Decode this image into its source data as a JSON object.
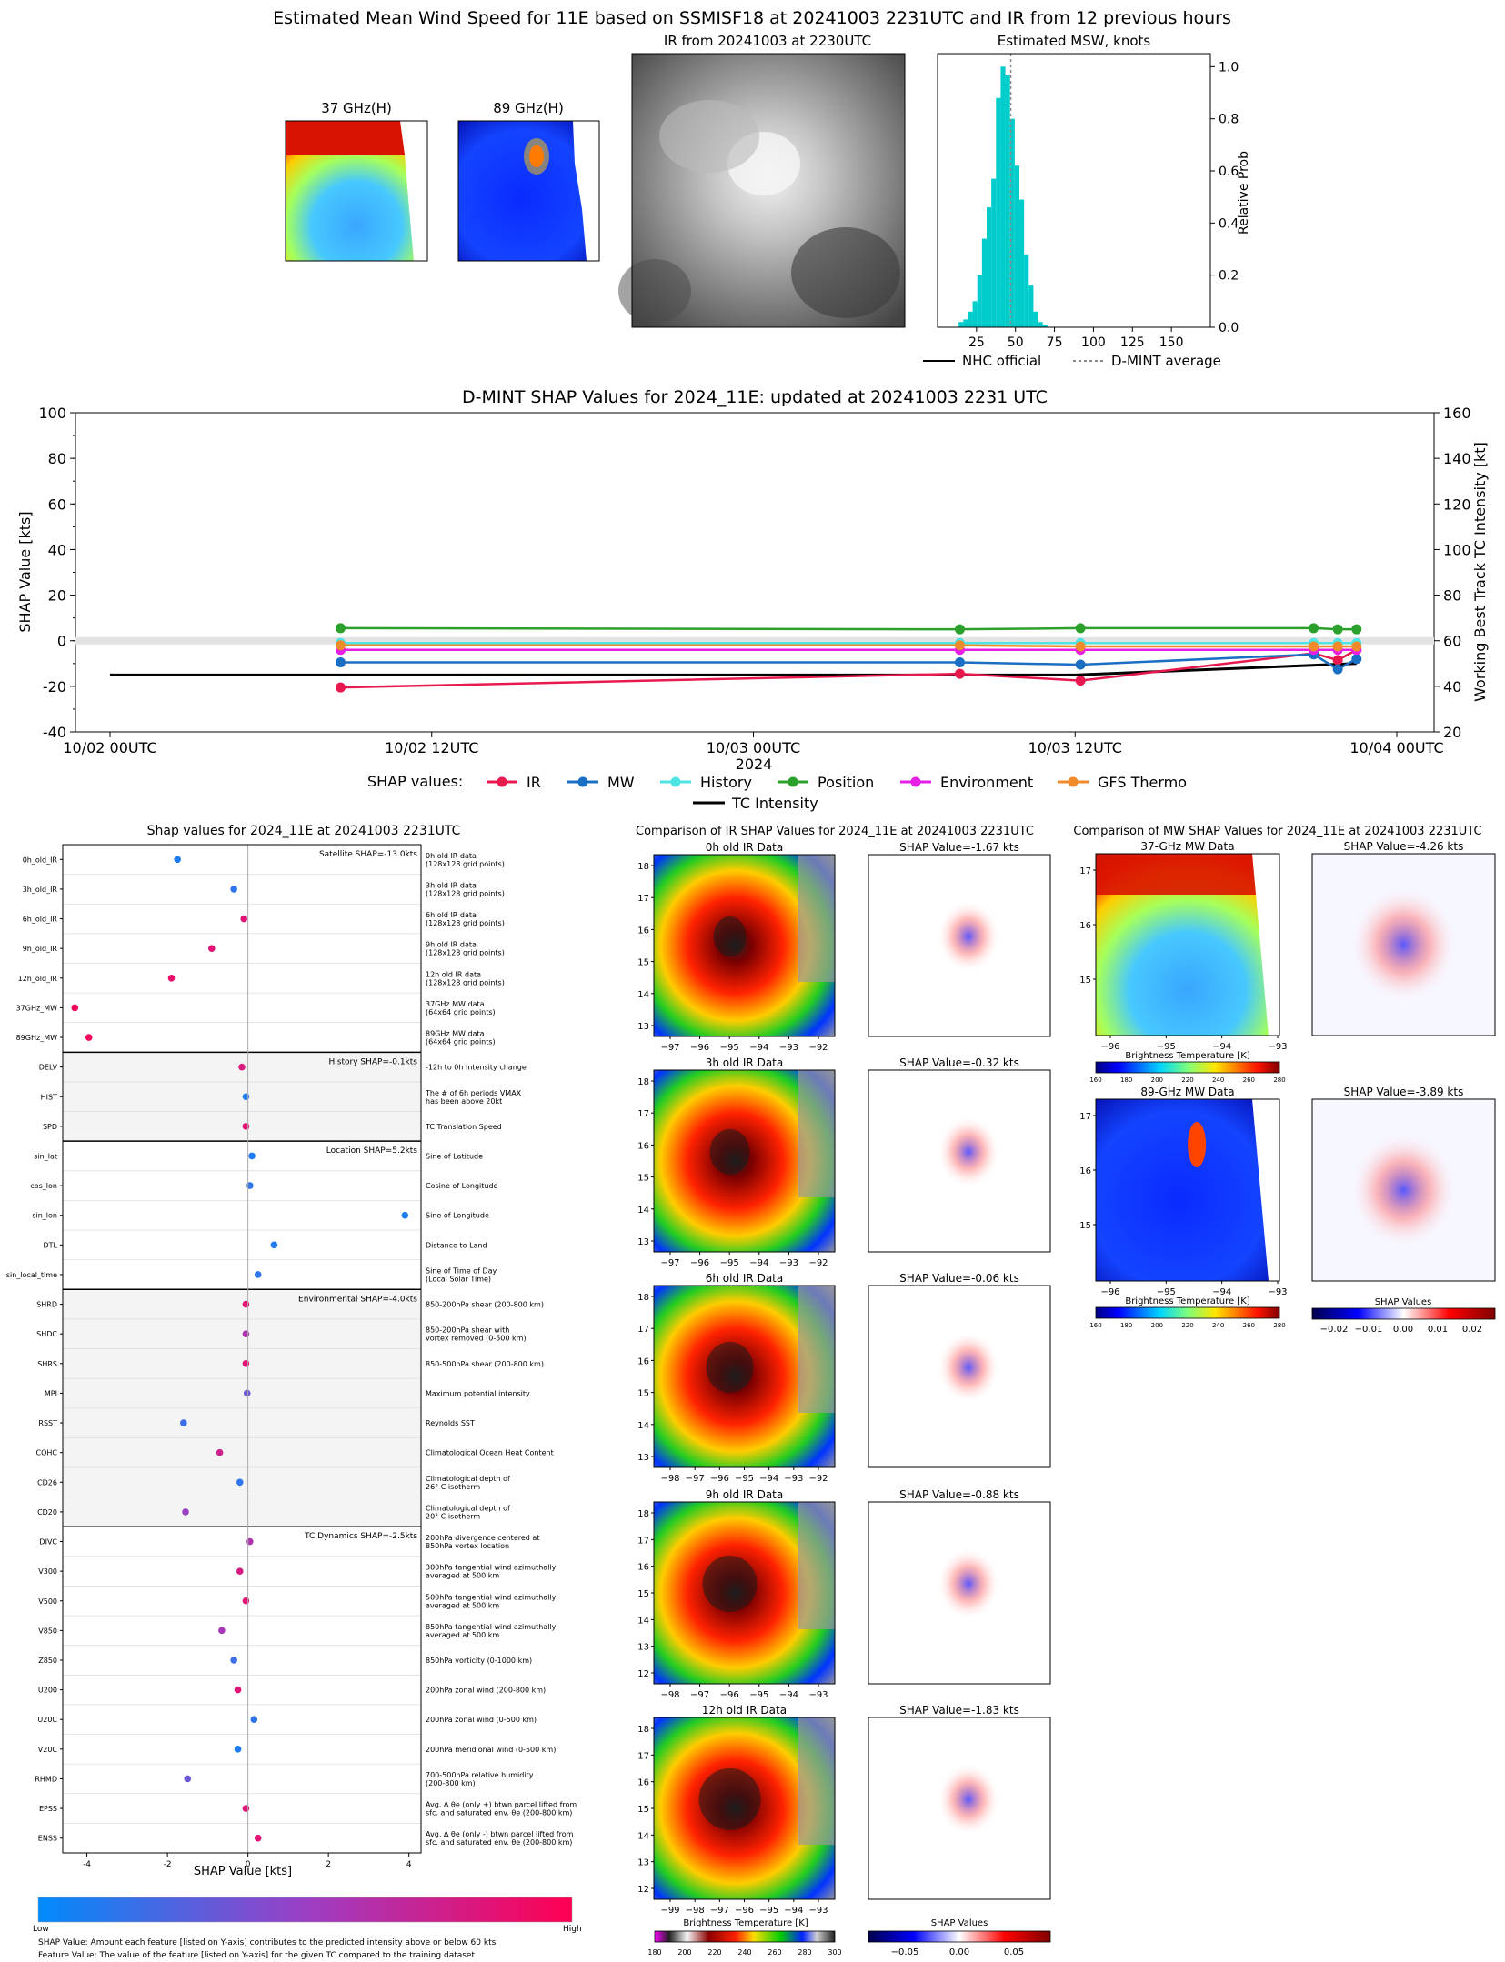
{
  "top": {
    "title": "Estimated Mean Wind Speed for 11E based on SSMISF18 at 20241003 2231UTC and IR from 12 previous hours",
    "mw37_title": "37 GHz(H)",
    "mw89_title": "89 GHz(H)",
    "ir_title": "IR from 20241003 at 2230UTC",
    "hist_title": "Estimated MSW, knots",
    "hist_ylabel": "Relative Prob",
    "legend": {
      "nhc": "NHC official",
      "dmint": "D-MINT average"
    }
  },
  "shap_ts": {
    "title": "D-MINT SHAP Values for 2024_11E: updated at 20241003 2231 UTC",
    "ylabel_left": "SHAP Value [kts]",
    "ylabel_right": "Working Best Track TC Intensity [kt]",
    "xlabel": "2024",
    "legend_title": "SHAP values:",
    "tc_label": "TC Intensity"
  },
  "bottom_left": {
    "title": "Shap values for 2024_11E at 20241003 2231UTC",
    "xlabel": "SHAP Value [kts]",
    "colorbar_low": "Low",
    "colorbar_high": "High",
    "note1": "SHAP Value: Amount each feature [listed on Y-axis] contributes to the predicted intensity above or below 60 kts",
    "note2": "Feature Value: The value of the feature [listed on Y-axis] for the given TC compared to the training dataset"
  },
  "ir_compare": {
    "title": "Comparison of IR SHAP Values for 2024_11E at 20241003 2231UTC",
    "panels": [
      {
        "ir": "0h old IR Data",
        "shap": "SHAP Value=-1.67 kts"
      },
      {
        "ir": "3h old IR Data",
        "shap": "SHAP Value=-0.32 kts"
      },
      {
        "ir": "6h old IR Data",
        "shap": "SHAP Value=-0.06 kts"
      },
      {
        "ir": "9h old IR Data",
        "shap": "SHAP Value=-0.88 kts"
      },
      {
        "ir": "12h old IR Data",
        "shap": "SHAP Value=-1.83 kts"
      }
    ],
    "cbar_label": "Brightness Temperature [K]",
    "shap_cbar_label": "SHAP Values"
  },
  "mw_compare": {
    "title": "Comparison of MW SHAP Values for 2024_11E at 20241003 2231UTC",
    "panels": [
      {
        "mw": "37-GHz MW Data",
        "shap": "SHAP Value=-4.26 kts"
      },
      {
        "mw": "89-GHz MW Data",
        "shap": "SHAP Value=-3.89 kts"
      }
    ],
    "cbar_label": "Brightness Temperature [K]",
    "shap_cbar_label": "SHAP Values"
  },
  "chart_data": [
    {
      "type": "bar",
      "name": "Estimated MSW histogram",
      "xlim": [
        0,
        175
      ],
      "ylim": [
        0,
        1.05
      ],
      "xticks": [
        25,
        50,
        75,
        100,
        125,
        150
      ],
      "yticks": [
        0.0,
        0.2,
        0.4,
        0.6,
        0.8,
        1.0
      ],
      "bin_width": 3,
      "bins": [
        {
          "x": 15,
          "y": 0.02
        },
        {
          "x": 18,
          "y": 0.03
        },
        {
          "x": 21,
          "y": 0.06
        },
        {
          "x": 24,
          "y": 0.1
        },
        {
          "x": 27,
          "y": 0.2
        },
        {
          "x": 30,
          "y": 0.34
        },
        {
          "x": 33,
          "y": 0.46
        },
        {
          "x": 36,
          "y": 0.57
        },
        {
          "x": 39,
          "y": 0.88
        },
        {
          "x": 42,
          "y": 1.0
        },
        {
          "x": 45,
          "y": 0.97
        },
        {
          "x": 48,
          "y": 0.8
        },
        {
          "x": 51,
          "y": 0.62
        },
        {
          "x": 54,
          "y": 0.49
        },
        {
          "x": 57,
          "y": 0.28
        },
        {
          "x": 60,
          "y": 0.16
        },
        {
          "x": 63,
          "y": 0.06
        },
        {
          "x": 66,
          "y": 0.02
        },
        {
          "x": 69,
          "y": 0.01
        }
      ],
      "dmint_average": 47
    },
    {
      "type": "line",
      "name": "D-MINT SHAP time series",
      "ylim": [
        -40,
        100
      ],
      "ylim_right": [
        20,
        160
      ],
      "yticks": [
        -40,
        -20,
        0,
        20,
        40,
        60,
        80,
        100
      ],
      "yticks_right": [
        20,
        40,
        60,
        80,
        100,
        120,
        140,
        160
      ],
      "xticks": [
        "10/02 00UTC",
        "10/02 12UTC",
        "10/03 00UTC",
        "10/03 12UTC",
        "10/04 00UTC"
      ],
      "xlim_hours": [
        0,
        48
      ],
      "series": [
        {
          "name": "IR",
          "color": "#e8194f",
          "x": [
            8.6,
            31.7,
            36.2,
            44.9,
            45.8,
            46.5
          ],
          "y": [
            -20.5,
            -14.5,
            -17.5,
            -5.5,
            -8.5,
            -4.0
          ]
        },
        {
          "name": "MW",
          "color": "#1a6fc4",
          "x": [
            8.6,
            31.7,
            36.2,
            44.9,
            45.8,
            46.5
          ],
          "y": [
            -9.5,
            -9.5,
            -10.5,
            -6.0,
            -12.5,
            -8.0
          ]
        },
        {
          "name": "History",
          "color": "#4fe3e3",
          "x": [
            8.6,
            31.7,
            36.2,
            44.9,
            45.8,
            46.5
          ],
          "y": [
            -1.0,
            -1.0,
            -1.0,
            -1.0,
            -1.0,
            -1.0
          ]
        },
        {
          "name": "Position",
          "color": "#2ca02c",
          "x": [
            8.6,
            31.7,
            36.2,
            44.9,
            45.8,
            46.5
          ],
          "y": [
            5.5,
            5.0,
            5.5,
            5.5,
            5.0,
            5.0
          ]
        },
        {
          "name": "Environment",
          "color": "#e61ee6",
          "x": [
            8.6,
            31.7,
            36.2,
            44.9,
            45.8,
            46.5
          ],
          "y": [
            -4.0,
            -4.0,
            -4.0,
            -4.0,
            -4.0,
            -4.0
          ]
        },
        {
          "name": "GFS Thermo",
          "color": "#f08a2a",
          "x": [
            8.6,
            31.7,
            36.2,
            44.9,
            45.8,
            46.5
          ],
          "y": [
            -2.0,
            -2.0,
            -2.5,
            -2.5,
            -2.5,
            -2.5
          ]
        }
      ],
      "tc_intensity": {
        "name": "TC Intensity",
        "x": [
          0,
          36,
          46.5
        ],
        "y": [
          45,
          45,
          50
        ]
      }
    },
    {
      "type": "scatter",
      "name": "Shap values per feature",
      "xlim": [
        -4.6,
        4.3
      ],
      "xticks": [
        -4,
        -2,
        0,
        2,
        4
      ],
      "groups": [
        {
          "label": "Satellite SHAP=-13.0kts",
          "shaded": false,
          "features": [
            {
              "name": "0h_old_IR",
              "desc": [
                "0h old IR data",
                "(128x128 grid points)"
              ],
              "shap": -1.75,
              "val": 0.1
            },
            {
              "name": "3h_old_IR",
              "desc": [
                "3h old IR data",
                "(128x128 grid points)"
              ],
              "shap": -0.35,
              "val": 0.15
            },
            {
              "name": "6h_old_IR",
              "desc": [
                "6h old IR data",
                "(128x128 grid points)"
              ],
              "shap": -0.1,
              "val": 0.85
            },
            {
              "name": "9h_old_IR",
              "desc": [
                "9h old IR data",
                "(128x128 grid points)"
              ],
              "shap": -0.9,
              "val": 0.85
            },
            {
              "name": "12h_old_IR",
              "desc": [
                "12h old IR data",
                "(128x128 grid points)"
              ],
              "shap": -1.9,
              "val": 0.9
            },
            {
              "name": "37GHz_MW",
              "desc": [
                "37GHz MW data",
                "(64x64 grid points)"
              ],
              "shap": -4.3,
              "val": 0.95
            },
            {
              "name": "89GHz_MW",
              "desc": [
                "89GHz MW data",
                "(64x64 grid points)"
              ],
              "shap": -3.95,
              "val": 0.95
            }
          ]
        },
        {
          "label": "History SHAP=-0.1kts",
          "shaded": true,
          "features": [
            {
              "name": "DELV",
              "desc": [
                "-12h to 0h Intensity change"
              ],
              "shap": -0.15,
              "val": 0.8
            },
            {
              "name": "HIST",
              "desc": [
                "The # of 6h periods VMAX",
                "has been above 20kt"
              ],
              "shap": -0.05,
              "val": 0.1
            },
            {
              "name": "SPD",
              "desc": [
                "TC Translation Speed"
              ],
              "shap": -0.05,
              "val": 0.85
            }
          ]
        },
        {
          "label": "Location SHAP=5.2kts",
          "shaded": false,
          "features": [
            {
              "name": "sin_lat",
              "desc": [
                "Sine of Latitude"
              ],
              "shap": 0.1,
              "val": 0.1
            },
            {
              "name": "cos_lon",
              "desc": [
                "Cosine of Longitude"
              ],
              "shap": 0.05,
              "val": 0.15
            },
            {
              "name": "sin_lon",
              "desc": [
                "Sine of Longitude"
              ],
              "shap": 3.9,
              "val": 0.1
            },
            {
              "name": "DTL",
              "desc": [
                "Distance to Land"
              ],
              "shap": 0.65,
              "val": 0.1
            },
            {
              "name": "sin_local_time",
              "desc": [
                "Sine of Time of Day",
                "(Local Solar Time)"
              ],
              "shap": 0.25,
              "val": 0.15
            }
          ]
        },
        {
          "label": "Environmental SHAP=-4.0kts",
          "shaded": true,
          "features": [
            {
              "name": "SHRD",
              "desc": [
                "850-200hPa shear (200-800 km)"
              ],
              "shap": -0.05,
              "val": 0.85
            },
            {
              "name": "SHDC",
              "desc": [
                "850-200hPa shear with",
                "vortex removed (0-500 km)"
              ],
              "shap": -0.05,
              "val": 0.6
            },
            {
              "name": "SHRS",
              "desc": [
                "850-500hPa shear (200-800 km)"
              ],
              "shap": -0.05,
              "val": 0.85
            },
            {
              "name": "MPI",
              "desc": [
                "Maximum potential intensity"
              ],
              "shap": -0.02,
              "val": 0.35
            },
            {
              "name": "RSST",
              "desc": [
                "Reynolds SST"
              ],
              "shap": -1.6,
              "val": 0.2
            },
            {
              "name": "COHC",
              "desc": [
                "Climatological Ocean Heat Content"
              ],
              "shap": -0.7,
              "val": 0.75
            },
            {
              "name": "CD26",
              "desc": [
                "Climatological depth of",
                "26° C isotherm"
              ],
              "shap": -0.2,
              "val": 0.15
            },
            {
              "name": "CD20",
              "desc": [
                "Climatological depth of",
                "20° C isotherm"
              ],
              "shap": -1.55,
              "val": 0.5
            }
          ]
        },
        {
          "label": "TC Dynamics SHAP=-2.5kts",
          "shaded": false,
          "features": [
            {
              "name": "DIVC",
              "desc": [
                "200hPa divergence centered at",
                "850hPa vortex location"
              ],
              "shap": 0.05,
              "val": 0.6
            },
            {
              "name": "V300",
              "desc": [
                "300hPa tangential wind azimuthally",
                "averaged at 500 km"
              ],
              "shap": -0.2,
              "val": 0.8
            },
            {
              "name": "V500",
              "desc": [
                "500hPa tangential wind azimuthally",
                "averaged at 500 km"
              ],
              "shap": -0.05,
              "val": 0.85
            },
            {
              "name": "V850",
              "desc": [
                "850hPa tangential wind azimuthally",
                "averaged at 500 km"
              ],
              "shap": -0.65,
              "val": 0.55
            },
            {
              "name": "Z850",
              "desc": [
                "850hPa vorticity (0-1000 km)"
              ],
              "shap": -0.35,
              "val": 0.2
            },
            {
              "name": "U200",
              "desc": [
                "200hPa zonal wind (200-800 km)"
              ],
              "shap": -0.25,
              "val": 0.85
            },
            {
              "name": "U20C",
              "desc": [
                "200hPa zonal wind (0-500 km)"
              ],
              "shap": 0.15,
              "val": 0.15
            },
            {
              "name": "V20C",
              "desc": [
                "200hPa meridional wind (0-500 km)"
              ],
              "shap": -0.25,
              "val": 0.1
            },
            {
              "name": "RHMD",
              "desc": [
                "700-500hPa relative humidity",
                "(200-800 km)"
              ],
              "shap": -1.5,
              "val": 0.35
            },
            {
              "name": "EPSS",
              "desc": [
                "Avg. Δ θe (only +) btwn parcel lifted from",
                "sfc. and saturated env. θe (200-800 km)"
              ],
              "shap": -0.05,
              "val": 0.85
            },
            {
              "name": "ENSS",
              "desc": [
                "Avg. Δ θe (only -) btwn parcel lifted from",
                "sfc. and saturated env. θe (200-800 km)"
              ],
              "shap": 0.25,
              "val": 0.85
            }
          ]
        }
      ]
    }
  ],
  "axes": {
    "mw_lat": [
      "17",
      "16",
      "15"
    ],
    "mw_lon": [
      "−96",
      "−95",
      "−94",
      "−93"
    ],
    "ir_lat_a": [
      "18",
      "17",
      "16",
      "15",
      "14",
      "13"
    ],
    "ir_lat_b": [
      "18",
      "17",
      "16",
      "15",
      "14",
      "13",
      "12"
    ],
    "ir_lon_a": [
      "−97",
      "−96",
      "−95",
      "−94",
      "−93",
      "−92"
    ],
    "ir_lon_b": [
      "−98",
      "−97",
      "−96",
      "−95",
      "−94",
      "−93",
      "−92"
    ],
    "ir_lon_c": [
      "−98",
      "−97",
      "−96",
      "−95",
      "−94",
      "−93"
    ],
    "ir_lon_d": [
      "−99",
      "−98",
      "−97",
      "−96",
      "−95",
      "−94",
      "−93"
    ],
    "bt_ticks_ir": [
      "180",
      "200",
      "220",
      "240",
      "260",
      "280",
      "300"
    ],
    "bt_ticks_mw": [
      "160",
      "180",
      "200",
      "220",
      "240",
      "260",
      "280"
    ],
    "shap_ticks_ir": [
      "−0.05",
      "0.00",
      "0.05"
    ],
    "shap_ticks_mw": [
      "−0.02",
      "−0.01",
      "0.00",
      "0.01",
      "0.02"
    ]
  }
}
